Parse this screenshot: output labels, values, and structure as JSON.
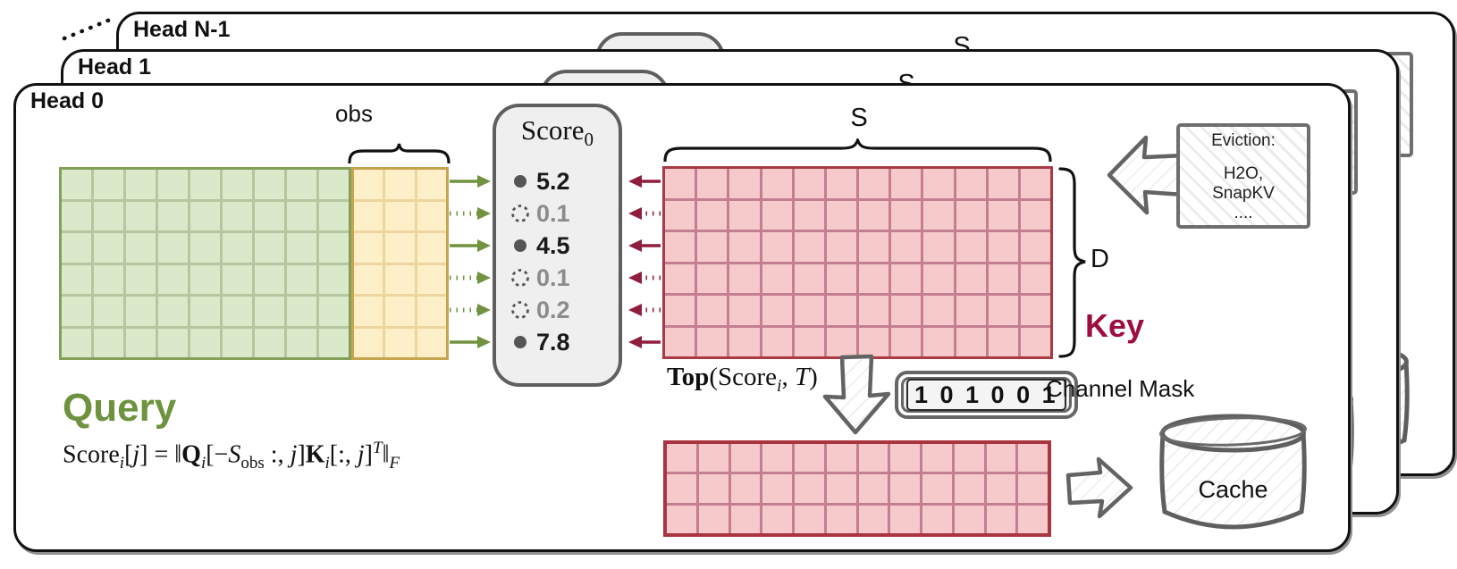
{
  "layers": [
    {
      "label": "Head 0"
    },
    {
      "label": "Head 1"
    },
    {
      "label": "Head N-1"
    }
  ],
  "s_label": "S",
  "obs_label": "obs",
  "d_label": "D",
  "query_label": "Query",
  "key_label": "Key",
  "score_box": {
    "title": [
      {
        "text": "Score"
      },
      {
        "text": "0",
        "style": "sub"
      }
    ],
    "rows": [
      {
        "value": "5.2",
        "selected": true
      },
      {
        "value": "0.1",
        "selected": false
      },
      {
        "value": "4.5",
        "selected": true
      },
      {
        "value": "0.1",
        "selected": false
      },
      {
        "value": "0.2",
        "selected": false
      },
      {
        "value": "7.8",
        "selected": true
      }
    ]
  },
  "top_formula": [
    {
      "text": "Top",
      "style": "bold"
    },
    {
      "text": "(Score"
    },
    {
      "text": "i",
      "style": "sub-italic"
    },
    {
      "text": ", "
    },
    {
      "text": "T",
      "style": "italic"
    },
    {
      "text": ")"
    }
  ],
  "main_formula": [
    {
      "text": "Score"
    },
    {
      "text": "i",
      "style": "sub-italic"
    },
    {
      "text": "["
    },
    {
      "text": "j",
      "style": "italic"
    },
    {
      "text": "] = ‖"
    },
    {
      "text": "Q",
      "style": "bold"
    },
    {
      "text": "i",
      "style": "sub-italic"
    },
    {
      "text": "[−"
    },
    {
      "text": "S",
      "style": "italic"
    },
    {
      "text": "obs",
      "style": "sub"
    },
    {
      "text": " :, "
    },
    {
      "text": "j",
      "style": "italic"
    },
    {
      "text": "]"
    },
    {
      "text": "K",
      "style": "bold"
    },
    {
      "text": "i",
      "style": "sub-italic"
    },
    {
      "text": "[:, "
    },
    {
      "text": "j",
      "style": "italic"
    },
    {
      "text": "]"
    },
    {
      "text": "T",
      "style": "sup-italic"
    },
    {
      "text": "‖"
    },
    {
      "text": "F",
      "style": "sub-italic"
    }
  ],
  "eviction_note": {
    "line1": "Eviction:",
    "line2": "H2O,",
    "line3": "SnapKV",
    "line4": "...."
  },
  "channel_mask": {
    "bits": "1 0 1 0 0 1",
    "label": "Channel Mask"
  },
  "cache_label": "Cache",
  "grids": {
    "query_green": {
      "cols": 9,
      "rows": 6,
      "fill": "#dbe8ca",
      "line": "#b6c69e",
      "border": "#82a058"
    },
    "query_obs": {
      "cols": 3,
      "rows": 6,
      "fill": "#fdf0c9",
      "line": "#eed49e",
      "border": "#c7a44e"
    },
    "key": {
      "cols": 12,
      "rows": 6,
      "fill": "#f6caca",
      "line": "#c47e92",
      "border": "#aa3a44"
    },
    "selected": {
      "cols": 12,
      "rows": 3,
      "fill": "#f6caca",
      "line": "#c47e92",
      "border": "#a8353f"
    }
  },
  "colors": {
    "layer-border": "#111111",
    "layer-shadow": "#909090",
    "green-arrow": "#71923f",
    "red-arrow": "#8f1d3c",
    "dot-gray": "#555555",
    "query-label": "#6e923e",
    "key-label": "#9e0e3d",
    "score-value": "#1a1a1a",
    "score-value-pruned": "#8c8c8c",
    "score-box-bg": "#efefef",
    "score-box-border": "#5f5f5f",
    "sketch-stroke": "#636363"
  }
}
